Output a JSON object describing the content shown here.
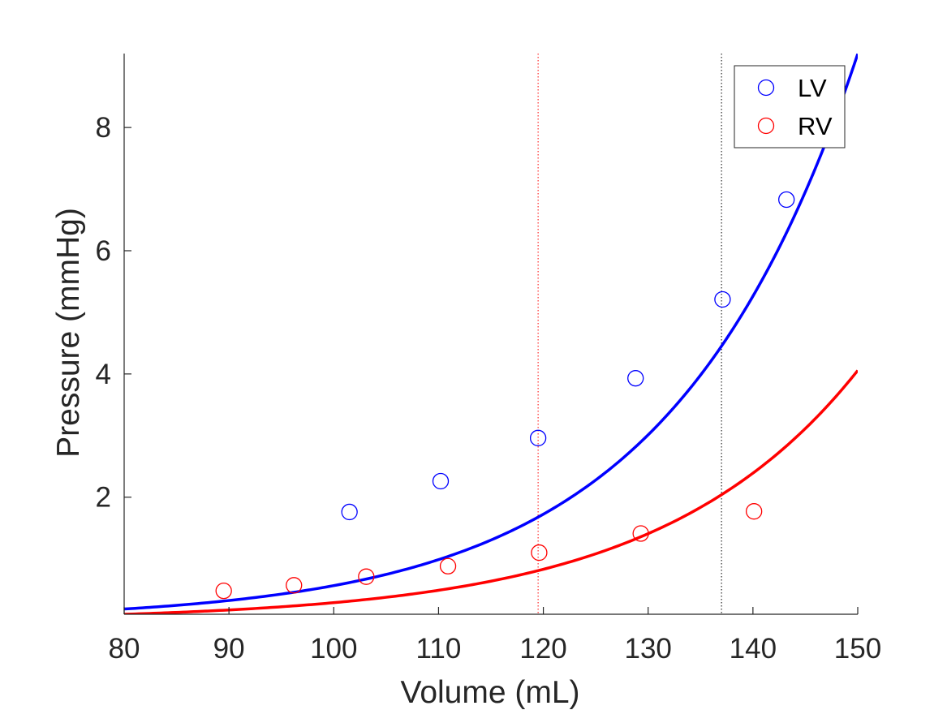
{
  "chart_data": {
    "type": "scatter",
    "title": "",
    "xlabel": "Volume (mL)",
    "ylabel": "Pressure (mmHg)",
    "xlim": [
      80,
      150
    ],
    "ylim": [
      0.1,
      9.2
    ],
    "xticks": [
      80,
      90,
      100,
      110,
      120,
      130,
      140,
      150
    ],
    "xtick_labels": [
      "80",
      "90",
      "100",
      "110",
      "120",
      "130",
      "140",
      "150"
    ],
    "yticks": [
      2,
      4,
      6,
      8
    ],
    "ytick_labels": [
      "2",
      "4",
      "6",
      "8"
    ],
    "grid": false,
    "legend_position": "top-right",
    "series": [
      {
        "name": "LV",
        "color": "#0000ff",
        "marker": "circle-open",
        "points": [
          [
            101.5,
            1.76
          ],
          [
            110.2,
            2.26
          ],
          [
            119.5,
            2.96
          ],
          [
            128.8,
            3.93
          ],
          [
            137.1,
            5.21
          ],
          [
            143.2,
            6.83
          ]
        ]
      },
      {
        "name": "RV",
        "color": "#ff0000",
        "marker": "circle-open",
        "points": [
          [
            89.5,
            0.48
          ],
          [
            96.2,
            0.57
          ],
          [
            103.1,
            0.71
          ],
          [
            110.9,
            0.88
          ],
          [
            119.6,
            1.1
          ],
          [
            129.3,
            1.41
          ],
          [
            140.1,
            1.77
          ]
        ]
      }
    ],
    "fit_curves": [
      {
        "series": "LV",
        "color": "#0000ff",
        "model": "exponential",
        "x_range": [
          80,
          150
        ],
        "a": 0.185,
        "b": 0.0558,
        "x0": 80
      },
      {
        "series": "RV",
        "color": "#ff0000",
        "model": "exponential",
        "x_range": [
          80,
          150
        ],
        "a": 0.1,
        "b": 0.0529,
        "x0": 80
      }
    ],
    "reference_lines": [
      {
        "orientation": "vertical",
        "x": 119.5,
        "color": "#ff0000",
        "style": "dotted"
      },
      {
        "orientation": "vertical",
        "x": 137,
        "color": "#000000",
        "style": "dotted"
      }
    ]
  }
}
